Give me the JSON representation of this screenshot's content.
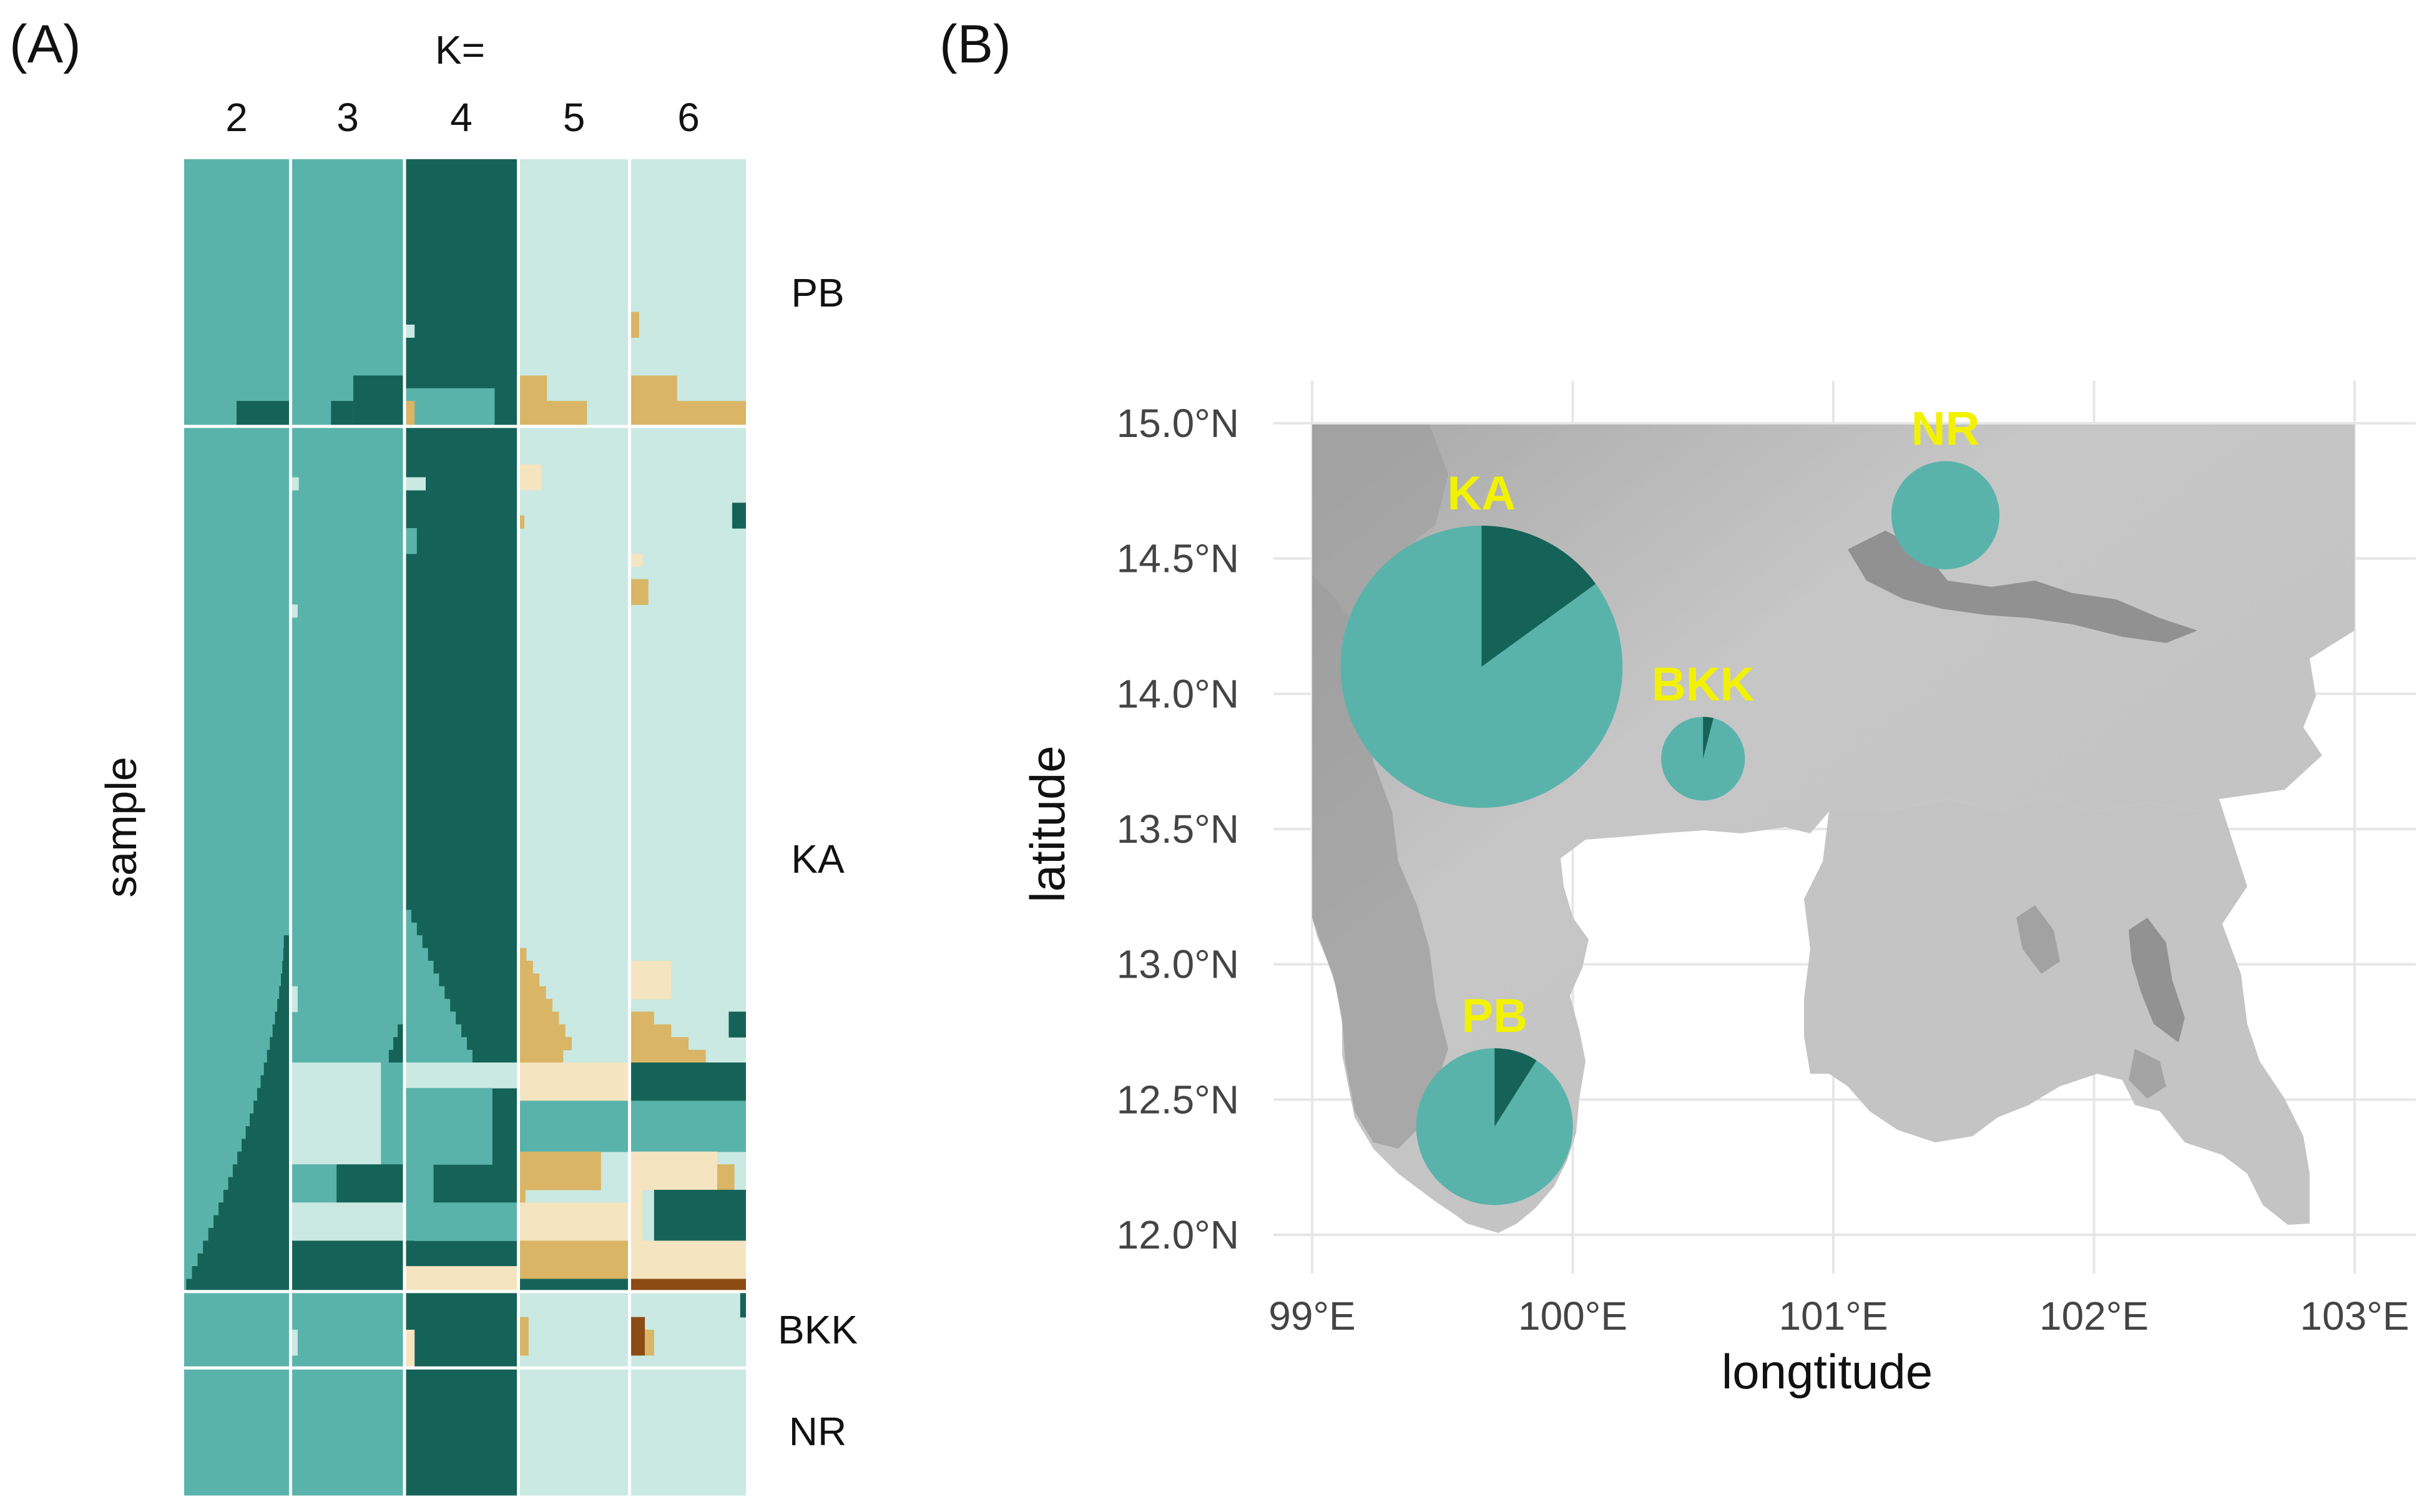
{
  "panels": {
    "a": "(A)",
    "b": "(B)"
  },
  "colors": {
    "teal": "#5ab3ab",
    "dark": "#156358",
    "light": "#c9e9e2",
    "tan": "#d9b565",
    "cream": "#f5e4c0",
    "brown": "#8c4b12",
    "yellow": "#f2f200",
    "grid": "#e6e6e6"
  },
  "chart_data": [
    {
      "type": "bar",
      "subtype": "stacked-admixture",
      "k_header": "K=",
      "k_values": [
        "2",
        "3",
        "4",
        "5",
        "6"
      ],
      "ylabel": "sample",
      "populations": [
        {
          "name": "PB",
          "rows": 21
        },
        {
          "name": "KA",
          "rows": 68
        },
        {
          "name": "BKK",
          "rows": 6
        },
        {
          "name": "NR",
          "rows": 10
        }
      ],
      "panels": [
        {
          "k": 2,
          "segments": [
            {
              "pop": "PB",
              "bands": [
                {
                  "from": 0,
                  "to": 19,
                  "dark": 0.0
                },
                {
                  "from": 19,
                  "to": 21,
                  "dark": 0.5
                }
              ]
            },
            {
              "pop": "KA",
              "bands": [
                {
                  "from": 0,
                  "to": 40,
                  "dark": 0.0
                },
                {
                  "from": 40,
                  "to": 68,
                  "dark_start": 0.05,
                  "dark_end": 0.98
                }
              ]
            },
            {
              "pop": "BKK",
              "bands": [
                {
                  "from": 0,
                  "to": 6,
                  "dark": 0.0
                }
              ]
            },
            {
              "pop": "NR",
              "bands": [
                {
                  "from": 0,
                  "to": 10,
                  "dark": 0.0
                }
              ]
            }
          ]
        },
        {
          "k": 3,
          "summary": "teal dominant; KA lower rows mixed with light and dark components"
        },
        {
          "k": 4,
          "summary": "dark dominant; KA lower rows show light/teal/cream blocks"
        },
        {
          "k": 5,
          "summary": "light dominant; tan and cream blocks in PB and lower KA"
        },
        {
          "k": 6,
          "summary": "light dominant; dark, tan, cream and brown blocks in lower KA"
        }
      ]
    },
    {
      "type": "scatter",
      "subtype": "map-pie",
      "xlabel": "longtitude",
      "ylabel": "latitude",
      "xlim": [
        99,
        103
      ],
      "ylim": [
        12,
        15
      ],
      "xticks": [
        "99°E",
        "100°E",
        "101°E",
        "102°E",
        "103°E"
      ],
      "yticks": [
        "12.0°N",
        "12.5°N",
        "13.0°N",
        "13.5°N",
        "14.0°N",
        "14.5°N",
        "15.0°N"
      ],
      "points": [
        {
          "label": "KA",
          "lon": 99.65,
          "lat": 14.1,
          "relative_size": 68,
          "dark_fraction": 0.15
        },
        {
          "label": "NR",
          "lon": 101.43,
          "lat": 14.66,
          "relative_size": 10,
          "dark_fraction": 0.0
        },
        {
          "label": "BKK",
          "lon": 100.5,
          "lat": 13.76,
          "relative_size": 6,
          "dark_fraction": 0.04
        },
        {
          "label": "PB",
          "lon": 99.7,
          "lat": 12.4,
          "relative_size": 21,
          "dark_fraction": 0.09
        }
      ]
    }
  ]
}
